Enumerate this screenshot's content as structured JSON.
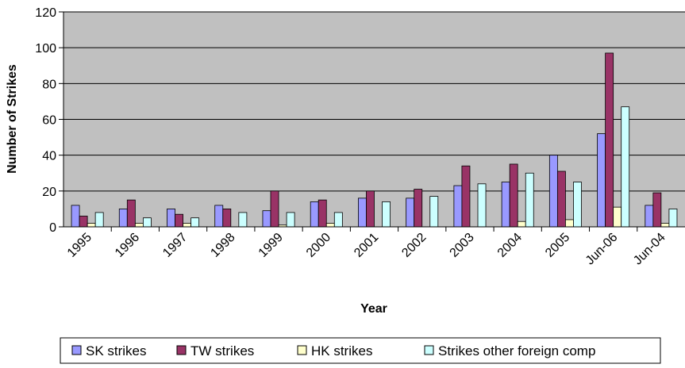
{
  "chart_data": {
    "type": "bar",
    "title": "",
    "xlabel": "Year",
    "ylabel": "Number of Strikes",
    "ylim": [
      0,
      120
    ],
    "yticks": [
      0,
      20,
      40,
      60,
      80,
      100,
      120
    ],
    "grid": true,
    "legend_position": "bottom",
    "categories": [
      "1995",
      "1996",
      "1997",
      "1998",
      "1999",
      "2000",
      "2001",
      "2002",
      "2003",
      "2004",
      "2005",
      "Jun-06",
      "Jun-04"
    ],
    "series": [
      {
        "name": "SK strikes",
        "color": "#9999ff",
        "values": [
          12,
          10,
          10,
          12,
          9,
          14,
          16,
          16,
          23,
          25,
          40,
          52,
          12
        ]
      },
      {
        "name": "TW strikes",
        "color": "#993366",
        "values": [
          6,
          15,
          7,
          10,
          20,
          15,
          20,
          21,
          34,
          35,
          31,
          97,
          19
        ]
      },
      {
        "name": "HK strikes",
        "color": "#ffffcc",
        "values": [
          2,
          2,
          2,
          0,
          1,
          2,
          0,
          0,
          0,
          3,
          4,
          11,
          2
        ]
      },
      {
        "name": "Strikes other foreign comp",
        "color": "#ccffff",
        "values": [
          8,
          5,
          5,
          8,
          8,
          8,
          14,
          17,
          24,
          30,
          25,
          67,
          10
        ]
      }
    ],
    "plot_background": "#c0c0c0"
  }
}
